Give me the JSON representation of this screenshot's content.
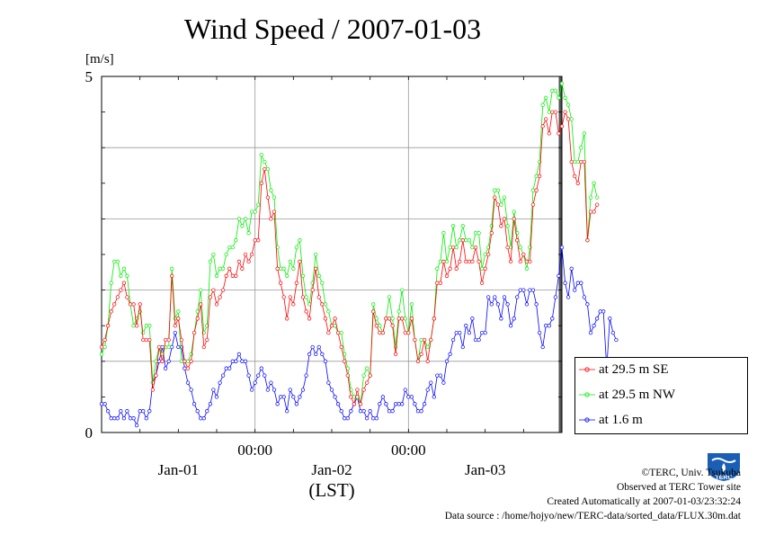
{
  "chart_data": {
    "type": "line",
    "title": "Wind Speed / 2007-01-03",
    "ylabel": "[m/s]",
    "xlabel": "(LST)",
    "ylim": [
      0,
      5
    ],
    "yticks": [
      "0",
      "5"
    ],
    "grid": true,
    "x_tick_labels": [
      {
        "label": "00:00",
        "hour": 24
      },
      {
        "label": "00:00",
        "hour": 48
      }
    ],
    "date_labels": [
      {
        "label": "Jan-01",
        "hour": 12
      },
      {
        "label": "Jan-02",
        "hour": 36
      },
      {
        "label": "Jan-03",
        "hour": 60
      }
    ],
    "x_range_hours": [
      0,
      72
    ],
    "x_step_hours": 0.5,
    "legend_position": "bottom-right",
    "series": [
      {
        "name": "at 29.5 m SE",
        "color": "#ff0000",
        "values": [
          1.2,
          1.3,
          1.5,
          1.7,
          1.8,
          1.9,
          2.0,
          2.1,
          1.9,
          1.8,
          1.8,
          1.5,
          1.8,
          1.3,
          1.3,
          1.3,
          0.6,
          0.8,
          1.2,
          1.0,
          1.3,
          1.3,
          2.2,
          1.5,
          1.6,
          1.3,
          1.0,
          0.9,
          1.0,
          1.4,
          1.6,
          1.8,
          1.2,
          1.3,
          1.9,
          2.0,
          1.8,
          1.9,
          2.0,
          2.2,
          2.3,
          2.2,
          2.2,
          2.4,
          2.3,
          2.5,
          2.4,
          2.5,
          2.7,
          2.7,
          3.5,
          3.7,
          3.3,
          3.0,
          3.1,
          2.3,
          2.1,
          1.9,
          1.6,
          1.9,
          1.8,
          2.1,
          2.4,
          1.9,
          1.7,
          1.6,
          2.0,
          2.3,
          1.9,
          1.8,
          1.6,
          1.4,
          1.5,
          1.6,
          1.4,
          1.2,
          1.0,
          0.8,
          0.5,
          0.4,
          0.6,
          0.4,
          0.6,
          0.7,
          0.8,
          1.7,
          1.5,
          1.4,
          1.4,
          1.6,
          1.6,
          1.5,
          1.1,
          1.6,
          1.6,
          1.4,
          1.4,
          1.6,
          1.3,
          1.0,
          1.1,
          1.3,
          1.0,
          1.3,
          1.6,
          2.1,
          2.1,
          2.4,
          2.2,
          2.3,
          2.6,
          2.3,
          2.4,
          2.7,
          2.4,
          2.4,
          2.4,
          2.6,
          2.4,
          2.1,
          2.3,
          2.5,
          2.8,
          3.3,
          3.2,
          2.9,
          3.0,
          2.6,
          2.4,
          3.0,
          2.7,
          2.4,
          2.5,
          2.4,
          2.4,
          3.2,
          3.4,
          3.6,
          4.3,
          4.4,
          4.2,
          4.5,
          4.5,
          4.2,
          4.3,
          4.5,
          4.4,
          3.8,
          3.6,
          3.5,
          3.8,
          3.8,
          2.7,
          3.1,
          3.1,
          3.2
        ]
      },
      {
        "name": "at 29.5 m NW",
        "color": "#00ee00",
        "values": [
          1.1,
          1.2,
          1.5,
          2.1,
          2.4,
          2.4,
          2.2,
          2.3,
          2.2,
          1.8,
          1.5,
          1.6,
          1.7,
          1.4,
          1.5,
          1.5,
          0.7,
          1.0,
          1.2,
          1.1,
          1.2,
          1.2,
          2.3,
          1.6,
          1.7,
          1.0,
          1.0,
          1.0,
          1.1,
          1.4,
          1.7,
          2.0,
          1.4,
          1.5,
          2.4,
          2.5,
          2.2,
          2.3,
          2.3,
          2.5,
          2.6,
          2.6,
          2.7,
          3.0,
          2.9,
          3.0,
          2.8,
          3.1,
          3.1,
          3.2,
          3.9,
          3.8,
          3.7,
          3.4,
          3.3,
          2.6,
          2.3,
          2.3,
          2.2,
          2.4,
          2.3,
          2.6,
          2.7,
          2.2,
          1.9,
          1.8,
          2.1,
          2.5,
          2.2,
          2.1,
          1.8,
          1.7,
          1.5,
          1.5,
          1.4,
          1.4,
          1.1,
          0.9,
          0.6,
          0.5,
          0.5,
          0.4,
          0.8,
          0.9,
          0.8,
          1.8,
          1.6,
          1.5,
          1.4,
          1.6,
          1.9,
          1.6,
          1.2,
          1.7,
          2.0,
          1.6,
          1.4,
          1.8,
          1.3,
          1.0,
          1.3,
          1.3,
          1.2,
          1.3,
          1.6,
          2.3,
          2.4,
          2.8,
          2.4,
          2.6,
          2.9,
          2.6,
          2.7,
          2.9,
          2.7,
          2.7,
          2.6,
          2.8,
          2.8,
          2.3,
          2.5,
          2.6,
          2.9,
          3.4,
          3.4,
          3.2,
          3.3,
          2.9,
          2.6,
          3.1,
          2.8,
          2.6,
          2.5,
          2.3,
          2.6,
          3.4,
          3.6,
          3.8,
          4.6,
          4.7,
          4.5,
          4.8,
          4.8,
          4.7,
          4.9,
          4.7,
          4.6,
          4.4,
          3.8,
          3.8,
          4.0,
          4.2,
          2.7,
          3.3,
          3.5,
          3.3
        ]
      },
      {
        "name": "at 1.6 m",
        "color": "#0000ff",
        "values": [
          0.4,
          0.4,
          0.3,
          0.2,
          0.2,
          0.2,
          0.3,
          0.2,
          0.3,
          0.2,
          0.2,
          0.1,
          0.3,
          0.3,
          0.2,
          0.3,
          0.7,
          0.8,
          1.0,
          1.2,
          0.9,
          1.0,
          1.2,
          1.4,
          1.2,
          1.2,
          0.9,
          0.7,
          0.6,
          0.4,
          0.3,
          0.2,
          0.2,
          0.3,
          0.4,
          0.6,
          0.5,
          0.7,
          0.8,
          0.9,
          0.9,
          1.0,
          1.0,
          1.1,
          1.0,
          1.0,
          0.8,
          0.6,
          0.7,
          0.8,
          0.9,
          0.8,
          0.6,
          0.7,
          0.6,
          0.4,
          0.5,
          0.5,
          0.3,
          0.6,
          0.5,
          0.4,
          0.5,
          0.6,
          0.8,
          1.1,
          1.2,
          1.1,
          1.2,
          1.1,
          1.0,
          0.7,
          0.6,
          0.5,
          0.4,
          0.3,
          0.2,
          0.2,
          0.3,
          0.4,
          0.5,
          0.3,
          0.3,
          0.2,
          0.3,
          0.2,
          0.2,
          0.4,
          0.5,
          0.4,
          0.3,
          0.3,
          0.4,
          0.4,
          0.4,
          0.6,
          0.5,
          0.5,
          0.4,
          0.3,
          0.3,
          0.4,
          0.6,
          0.7,
          0.5,
          0.8,
          0.8,
          0.7,
          1.0,
          1.1,
          1.3,
          1.4,
          1.4,
          1.2,
          1.5,
          1.4,
          1.6,
          1.3,
          1.3,
          1.4,
          1.4,
          1.9,
          1.8,
          1.9,
          1.8,
          1.6,
          1.9,
          1.8,
          1.5,
          1.6,
          1.9,
          2.0,
          2.0,
          1.8,
          2.0,
          2.0,
          1.8,
          1.4,
          1.2,
          1.5,
          1.5,
          1.6,
          1.9,
          2.2,
          2.6,
          2.1,
          1.9,
          2.3,
          2.0,
          2.1,
          2.1,
          1.9,
          1.8,
          1.4,
          1.5,
          1.6,
          1.7,
          1.7,
          0.9,
          1.6,
          1.4,
          1.3
        ]
      }
    ]
  },
  "credits": {
    "copyright": "©TERC, Univ. Tsukuba",
    "observed": "Observed at TERC Tower site",
    "created": "Created Automatically at 2007-01-03/23:32:24",
    "source": "Data source : /home/hojyo/new/TERC-data/sorted_data/FLUX.30m.dat",
    "logo_text": "TERC"
  }
}
